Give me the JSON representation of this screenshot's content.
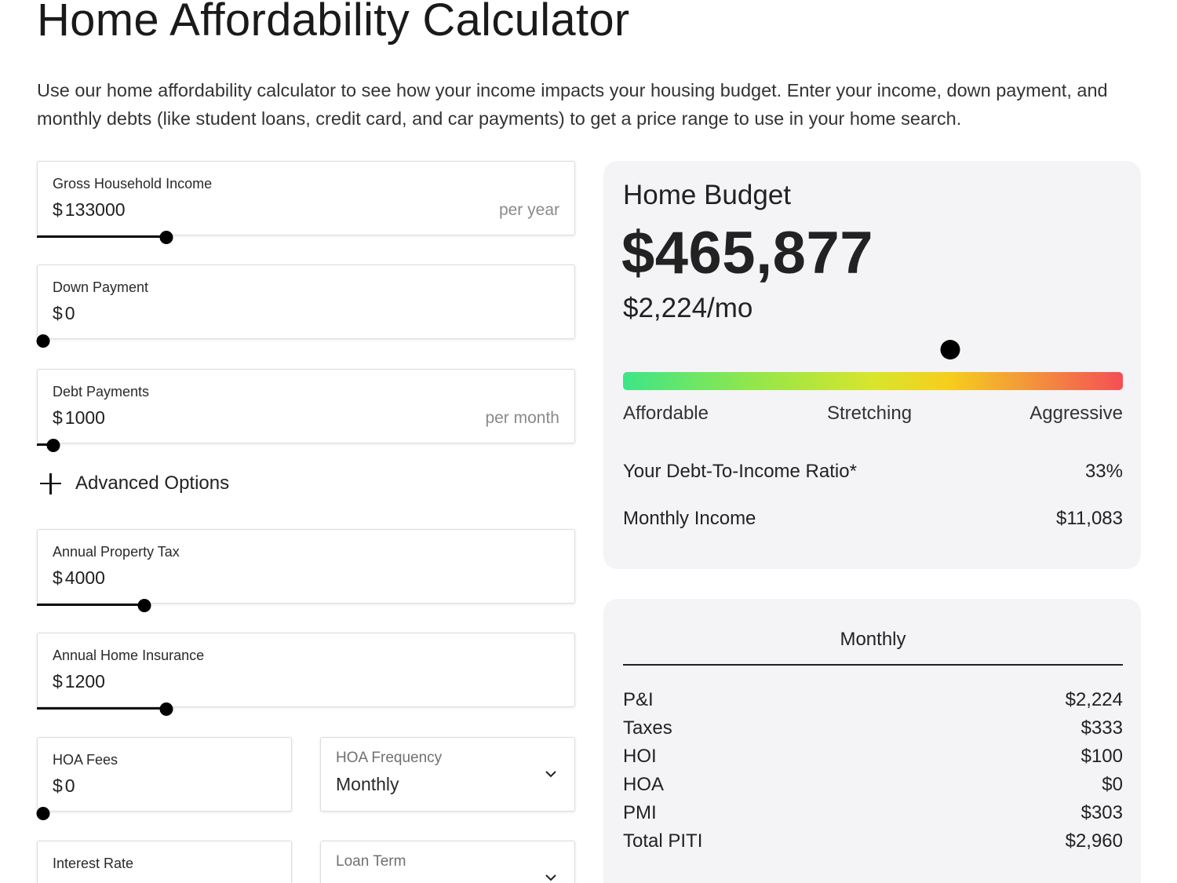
{
  "page": {
    "title": "Home Affordability Calculator",
    "intro": "Use our home affordability calculator to see how your income impacts your housing budget. Enter your income, down payment, and monthly debts (like student loans, credit card, and car payments) to get a price range to use in your home search."
  },
  "inputs": {
    "currency_symbol": "$",
    "income": {
      "label": "Gross Household Income",
      "value": "133000",
      "suffix": "per year",
      "slider_fraction": 0.24
    },
    "down_payment": {
      "label": "Down Payment",
      "value": "0",
      "slider_fraction": 0.0
    },
    "debt": {
      "label": "Debt Payments",
      "value": "1000",
      "suffix": "per month",
      "slider_fraction": 0.03
    },
    "advanced_label": "Advanced Options",
    "property_tax": {
      "label": "Annual Property Tax",
      "value": "4000",
      "slider_fraction": 0.2
    },
    "insurance": {
      "label": "Annual Home Insurance",
      "value": "1200",
      "slider_fraction": 0.24
    },
    "hoa_fees": {
      "label": "HOA Fees",
      "value": "0",
      "slider_fraction": 0.0
    },
    "hoa_frequency": {
      "label": "HOA Frequency",
      "value": "Monthly"
    },
    "interest_rate": {
      "label": "Interest Rate"
    },
    "loan_term": {
      "label": "Loan Term"
    }
  },
  "budget": {
    "label": "Home Budget",
    "amount": "$465,877",
    "monthly": "$2,224/mo",
    "meter_fraction": 0.655,
    "scale": {
      "low": "Affordable",
      "mid": "Stretching",
      "high": "Aggressive"
    },
    "dti_label": "Your Debt-To-Income Ratio*",
    "dti_value": "33%",
    "income_label": "Monthly Income",
    "income_value": "$11,083"
  },
  "breakdown": {
    "heading": "Monthly",
    "rows": [
      {
        "label": "P&I",
        "value": "$2,224"
      },
      {
        "label": "Taxes",
        "value": "$333"
      },
      {
        "label": "HOI",
        "value": "$100"
      },
      {
        "label": "HOA",
        "value": "$0"
      },
      {
        "label": "PMI",
        "value": "$303"
      },
      {
        "label": "Total PITI",
        "value": "$2,960"
      }
    ]
  },
  "colors": {
    "card_bg": "#f4f3f6",
    "gradient": [
      "#3ee588",
      "#8fe64d",
      "#d8e52c",
      "#f6ce1c",
      "#f39a3a",
      "#f44f55"
    ]
  }
}
